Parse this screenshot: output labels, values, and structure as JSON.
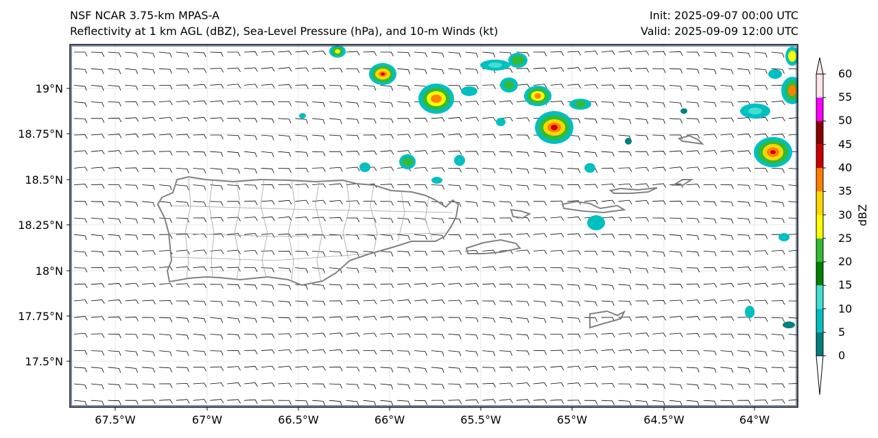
{
  "header": {
    "model": "NSF NCAR 3.75-km MPAS-A",
    "fields": "Reflectivity at 1 km AGL (dBZ), Sea-Level Pressure (hPa), and 10-m Winds (kt)",
    "init": "Init: 2025-09-07 00:00 UTC",
    "valid": "Valid: 2025-09-09 12:00 UTC"
  },
  "axes": {
    "lat_labels": [
      "19°N",
      "18.75°N",
      "18.5°N",
      "18.25°N",
      "18°N",
      "17.75°N",
      "17.5°N"
    ],
    "lon_labels": [
      "67.5°W",
      "67°W",
      "66.5°W",
      "66°W",
      "65.5°W",
      "65°W",
      "64.5°W",
      "64°W"
    ]
  },
  "colorbar": {
    "unit": "dBZ",
    "ticks": [
      "0",
      "5",
      "10",
      "15",
      "20",
      "25",
      "30",
      "35",
      "40",
      "45",
      "50",
      "55",
      "60"
    ],
    "colors": [
      "#008080",
      "#00bfc0",
      "#40e0d0",
      "#008000",
      "#33bb33",
      "#ffff00",
      "#ffd700",
      "#ff8000",
      "#cc0000",
      "#8b0000",
      "#ff00ff",
      "#ffe6e6"
    ]
  },
  "map": {
    "land_outline_color": "#808080",
    "border_color": "#a0a0a0",
    "wind_barb_color": "#000000"
  }
}
